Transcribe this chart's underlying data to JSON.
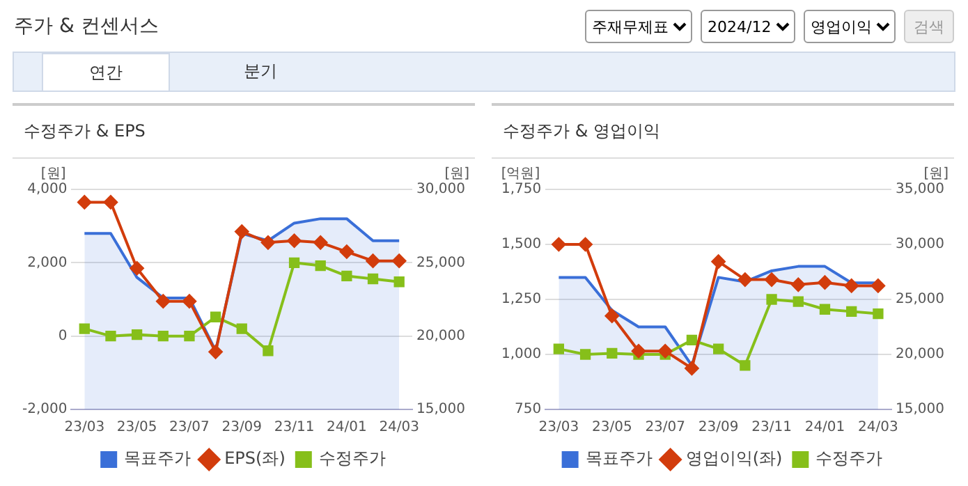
{
  "chart_data": [
    {
      "type": "other",
      "title": "주가 & 컨센서스",
      "annotations": [
        "주재무제표",
        "2024/12",
        "영업이익",
        "검색",
        "연간",
        "분기"
      ]
    },
    {
      "type": "line",
      "title": "수정주가 & EPS",
      "ylabel": "[원]",
      "y2label": "[원]",
      "categories": [
        "23/03",
        null,
        "23/05",
        null,
        "23/07",
        null,
        "23/09",
        null,
        "23/11",
        null,
        "24/01",
        null,
        "24/03"
      ],
      "series": [
        {
          "name": "목표주가",
          "type": "area",
          "axis": "y2",
          "color": "#3a6fd8",
          "marker": "none",
          "values": [
            27000,
            27000,
            24000,
            22600,
            22600,
            19000,
            27000,
            26500,
            27700,
            28000,
            28000,
            26500,
            26500
          ]
        },
        {
          "name": "EPS(좌)",
          "type": "line",
          "color": "#d23c0c",
          "marker": "diamond",
          "values": [
            3650,
            3650,
            1850,
            950,
            950,
            -430,
            2850,
            2550,
            2600,
            2550,
            2300,
            2050,
            2050
          ]
        },
        {
          "name": "수정주가",
          "type": "line",
          "axis": "y2",
          "color": "#86bf1a",
          "marker": "square",
          "values": [
            20500,
            20000,
            20100,
            20000,
            20000,
            21300,
            20500,
            19000,
            25000,
            24800,
            24100,
            23900,
            23700
          ]
        }
      ],
      "ylim": [
        -2000,
        4000
      ],
      "yticks": [
        {
          "value": -2000,
          "label": "-2,000"
        },
        0,
        {
          "value": 2000,
          "label": "2,000"
        },
        {
          "value": 4000,
          "label": "4,000"
        }
      ],
      "y2lim": [
        15000,
        30000
      ],
      "y2ticks": [
        {
          "value": 15000,
          "label": "15,000"
        },
        {
          "value": 20000,
          "label": "20,000"
        },
        {
          "value": 25000,
          "label": "25,000"
        },
        {
          "value": 30000,
          "label": "30,000"
        }
      ],
      "grid": "y",
      "legend": "bottom"
    },
    {
      "type": "line",
      "title": "수정주가 & 영업이익",
      "ylabel": "[억원]",
      "y2label": "[원]",
      "categories": [
        "23/03",
        null,
        "23/05",
        null,
        "23/07",
        null,
        "23/09",
        null,
        "23/11",
        null,
        "24/01",
        null,
        "24/03"
      ],
      "series": [
        {
          "name": "목표주가",
          "type": "area",
          "axis": "y2",
          "color": "#3a6fd8",
          "marker": "none",
          "values": [
            27000,
            27000,
            24000,
            22500,
            22500,
            19000,
            27000,
            26600,
            27600,
            28000,
            28000,
            26500,
            26500
          ]
        },
        {
          "name": "영업이익(좌)",
          "type": "line",
          "color": "#d23c0c",
          "marker": "diamond",
          "values": [
            1500,
            1500,
            1175,
            1015,
            1015,
            937,
            1422,
            1340,
            1340,
            1317,
            1327,
            1312,
            1312
          ]
        },
        {
          "name": "수정주가",
          "type": "line",
          "axis": "y2",
          "color": "#86bf1a",
          "marker": "square",
          "values": [
            20500,
            20000,
            20100,
            20000,
            20000,
            21300,
            20500,
            19000,
            25000,
            24800,
            24100,
            23900,
            23700
          ]
        }
      ],
      "ylim": [
        750,
        1750
      ],
      "yticks": [
        750,
        {
          "value": 1000,
          "label": "1,000"
        },
        {
          "value": 1250,
          "label": "1,250"
        },
        {
          "value": 1500,
          "label": "1,500"
        },
        {
          "value": 1750,
          "label": "1,750"
        }
      ],
      "y2lim": [
        15000,
        35000
      ],
      "y2ticks": [
        {
          "value": 15000,
          "label": "15,000"
        },
        {
          "value": 20000,
          "label": "20,000"
        },
        {
          "value": 25000,
          "label": "25,000"
        },
        {
          "value": 30000,
          "label": "30,000"
        },
        {
          "value": 35000,
          "label": "35,000"
        }
      ],
      "grid": "y",
      "legend": "bottom"
    }
  ]
}
